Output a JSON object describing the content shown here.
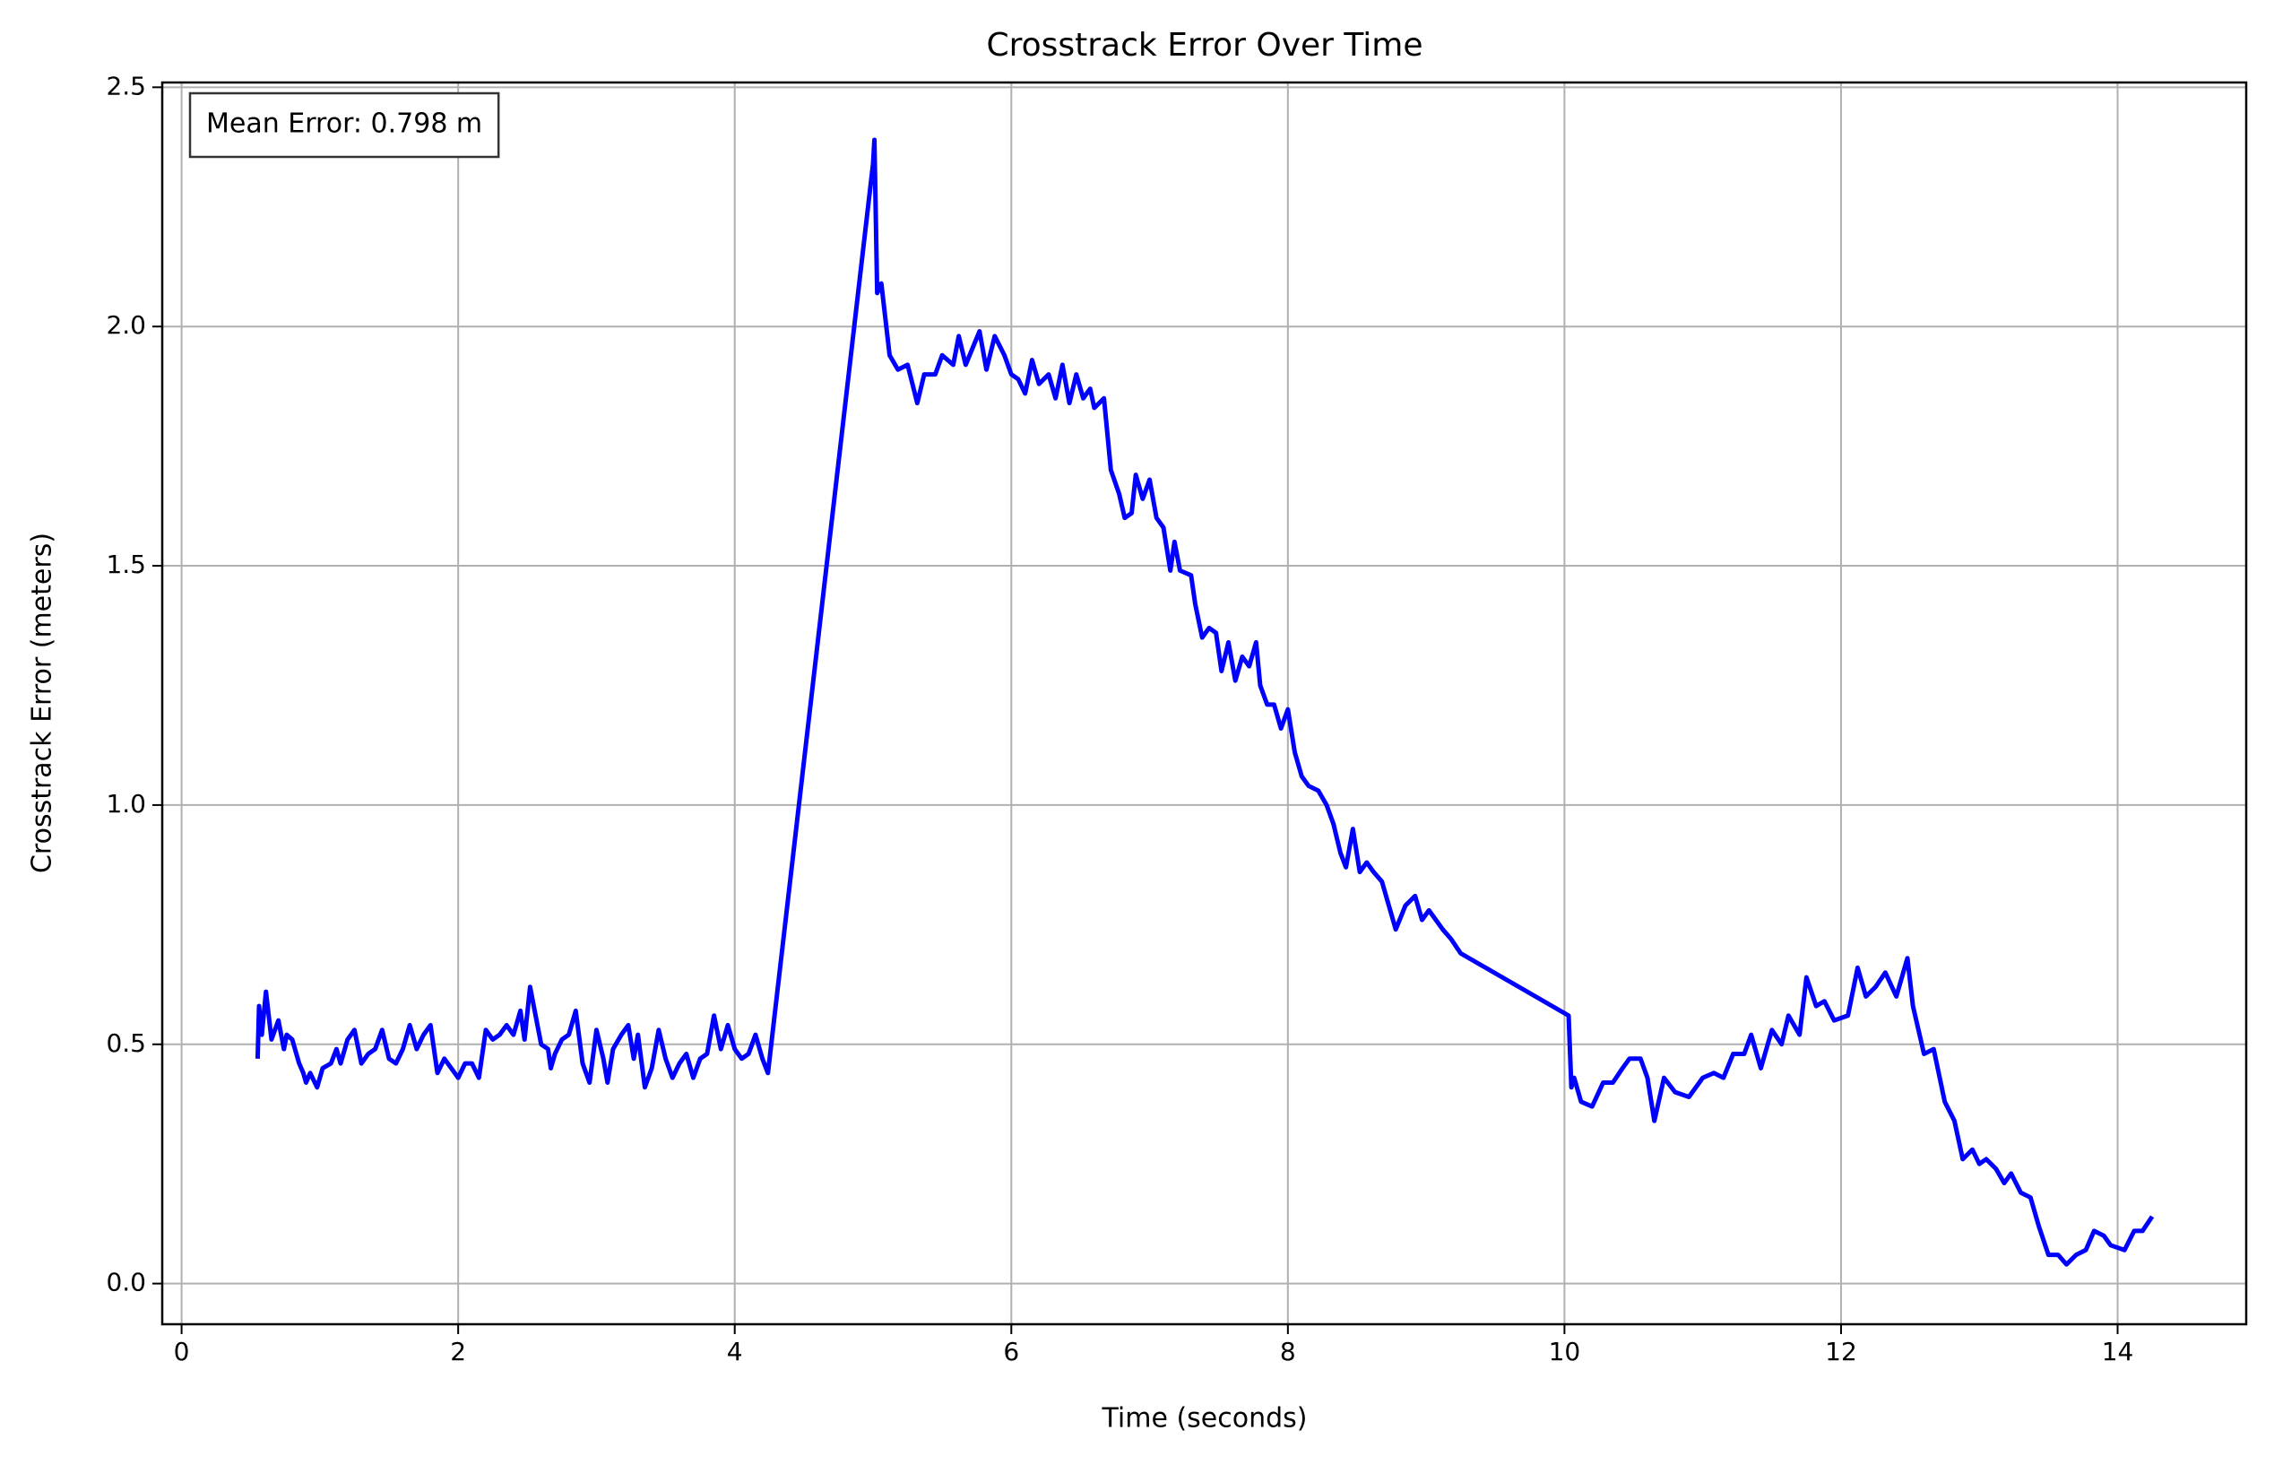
{
  "chart_data": {
    "type": "line",
    "title": "Crosstrack Error Over Time",
    "xlabel": "Time (seconds)",
    "ylabel": "Crosstrack Error (meters)",
    "annotation": "Mean Error: 0.798 m",
    "color": "#0000ff",
    "grid": true,
    "xlim": [
      -0.14,
      14.93
    ],
    "ylim": [
      -0.085,
      2.51
    ],
    "xticks": [
      0,
      2,
      4,
      6,
      8,
      10,
      12,
      14
    ],
    "yticks": [
      {
        "value": 0,
        "label": "0.0"
      },
      0.5,
      {
        "value": 1,
        "label": "1.0"
      },
      1.5,
      {
        "value": 2,
        "label": "2.0"
      },
      2.5
    ],
    "x": [
      0.55,
      0.56,
      0.58,
      0.61,
      0.65,
      0.7,
      0.74,
      0.76,
      0.8,
      0.85,
      0.88,
      0.9,
      0.93,
      0.98,
      1.02,
      1.08,
      1.12,
      1.15,
      1.2,
      1.25,
      1.3,
      1.35,
      1.4,
      1.45,
      1.5,
      1.55,
      1.6,
      1.65,
      1.7,
      1.75,
      1.8,
      1.85,
      1.9,
      1.95,
      2.0,
      2.05,
      2.1,
      2.15,
      2.2,
      2.25,
      2.3,
      2.35,
      2.4,
      2.45,
      2.48,
      2.52,
      2.6,
      2.65,
      2.67,
      2.7,
      2.75,
      2.8,
      2.85,
      2.9,
      2.95,
      3.0,
      3.05,
      3.08,
      3.12,
      3.18,
      3.23,
      3.27,
      3.3,
      3.35,
      3.4,
      3.45,
      3.5,
      3.55,
      3.6,
      3.65,
      3.7,
      3.75,
      3.8,
      3.85,
      3.9,
      3.95,
      4.0,
      4.05,
      4.1,
      4.15,
      4.2,
      4.24,
      5.0,
      5.01,
      5.03,
      5.06,
      5.12,
      5.18,
      5.25,
      5.32,
      5.37,
      5.45,
      5.5,
      5.58,
      5.62,
      5.67,
      5.77,
      5.82,
      5.88,
      5.95,
      6.0,
      6.05,
      6.1,
      6.15,
      6.2,
      6.27,
      6.32,
      6.37,
      6.42,
      6.47,
      6.52,
      6.57,
      6.6,
      6.67,
      6.72,
      6.78,
      6.82,
      6.87,
      6.9,
      6.95,
      7.0,
      7.05,
      7.1,
      7.15,
      7.18,
      7.22,
      7.3,
      7.33,
      7.38,
      7.43,
      7.48,
      7.52,
      7.57,
      7.62,
      7.67,
      7.72,
      7.77,
      7.8,
      7.85,
      7.9,
      7.95,
      8.0,
      8.05,
      8.1,
      8.15,
      8.22,
      8.28,
      8.33,
      8.38,
      8.42,
      8.47,
      8.52,
      8.57,
      8.62,
      8.68,
      8.72,
      8.78,
      8.85,
      8.92,
      8.97,
      9.02,
      9.07,
      9.12,
      9.18,
      9.25,
      10.03,
      10.05,
      10.07,
      10.12,
      10.2,
      10.28,
      10.35,
      10.42,
      10.47,
      10.55,
      10.6,
      10.65,
      10.72,
      10.8,
      10.9,
      11.0,
      11.08,
      11.15,
      11.22,
      11.3,
      11.35,
      11.42,
      11.5,
      11.57,
      11.62,
      11.7,
      11.75,
      11.82,
      11.88,
      11.95,
      12.05,
      12.12,
      12.18,
      12.25,
      12.32,
      12.4,
      12.48,
      12.52,
      12.6,
      12.67,
      12.75,
      12.82,
      12.88,
      12.95,
      13.0,
      13.05,
      13.12,
      13.18,
      13.23,
      13.3,
      13.37,
      13.43,
      13.5,
      13.57,
      13.63,
      13.7,
      13.77,
      13.83,
      13.9,
      13.95,
      14.05,
      14.12,
      14.18,
      14.25
    ],
    "values": [
      0.47,
      0.58,
      0.52,
      0.61,
      0.51,
      0.55,
      0.49,
      0.52,
      0.51,
      0.46,
      0.44,
      0.42,
      0.44,
      0.41,
      0.45,
      0.46,
      0.49,
      0.46,
      0.51,
      0.53,
      0.46,
      0.48,
      0.49,
      0.53,
      0.47,
      0.46,
      0.49,
      0.54,
      0.49,
      0.52,
      0.54,
      0.44,
      0.47,
      0.45,
      0.43,
      0.46,
      0.46,
      0.43,
      0.53,
      0.51,
      0.52,
      0.54,
      0.52,
      0.57,
      0.51,
      0.62,
      0.5,
      0.49,
      0.45,
      0.48,
      0.51,
      0.52,
      0.57,
      0.46,
      0.42,
      0.53,
      0.47,
      0.42,
      0.49,
      0.52,
      0.54,
      0.47,
      0.52,
      0.41,
      0.45,
      0.53,
      0.47,
      0.43,
      0.46,
      0.48,
      0.43,
      0.47,
      0.48,
      0.56,
      0.49,
      0.54,
      0.49,
      0.47,
      0.48,
      0.52,
      0.47,
      0.44,
      2.34,
      2.39,
      2.07,
      2.09,
      1.94,
      1.91,
      1.92,
      1.84,
      1.9,
      1.9,
      1.94,
      1.92,
      1.98,
      1.92,
      1.99,
      1.91,
      1.98,
      1.94,
      1.9,
      1.89,
      1.86,
      1.93,
      1.88,
      1.9,
      1.85,
      1.92,
      1.84,
      1.9,
      1.85,
      1.87,
      1.83,
      1.85,
      1.7,
      1.65,
      1.6,
      1.61,
      1.69,
      1.64,
      1.68,
      1.6,
      1.58,
      1.49,
      1.55,
      1.49,
      1.48,
      1.42,
      1.35,
      1.37,
      1.36,
      1.28,
      1.34,
      1.26,
      1.31,
      1.29,
      1.34,
      1.25,
      1.21,
      1.21,
      1.16,
      1.2,
      1.11,
      1.06,
      1.04,
      1.03,
      1.0,
      0.96,
      0.9,
      0.87,
      0.95,
      0.86,
      0.88,
      0.86,
      0.84,
      0.8,
      0.74,
      0.79,
      0.81,
      0.76,
      0.78,
      0.76,
      0.74,
      0.72,
      0.69,
      0.56,
      0.41,
      0.43,
      0.38,
      0.37,
      0.42,
      0.42,
      0.45,
      0.47,
      0.47,
      0.43,
      0.34,
      0.43,
      0.4,
      0.39,
      0.43,
      0.44,
      0.43,
      0.48,
      0.48,
      0.52,
      0.45,
      0.53,
      0.5,
      0.56,
      0.52,
      0.64,
      0.58,
      0.59,
      0.55,
      0.56,
      0.66,
      0.6,
      0.62,
      0.65,
      0.6,
      0.68,
      0.58,
      0.48,
      0.49,
      0.38,
      0.34,
      0.26,
      0.28,
      0.25,
      0.26,
      0.24,
      0.21,
      0.23,
      0.19,
      0.18,
      0.12,
      0.06,
      0.06,
      0.04,
      0.06,
      0.07,
      0.11,
      0.1,
      0.08,
      0.07,
      0.11,
      0.11,
      0.14
    ]
  }
}
